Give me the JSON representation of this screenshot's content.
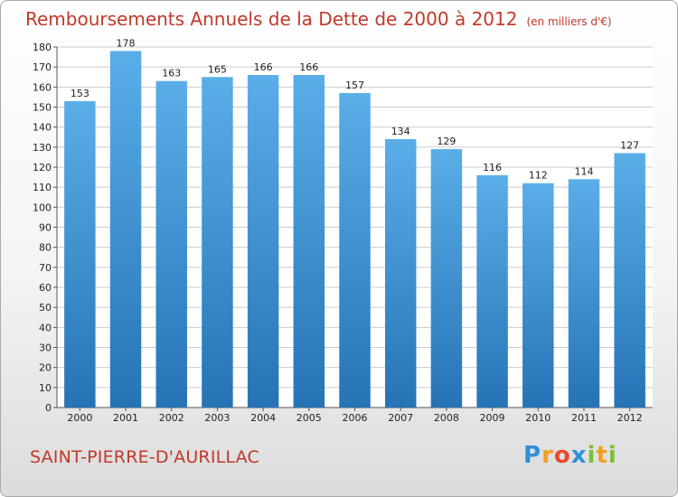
{
  "title": "Remboursements Annuels de la Dette de 2000 à 2012",
  "unit_note": "(en milliers d'€)",
  "commune": "SAINT-PIERRE-D'AURILLAC",
  "logo_text": "Proxiti",
  "colors": {
    "title": "#c0392b",
    "bar_top": "#5aaee8",
    "bar_bottom": "#2673b5",
    "grid": "#cccccc"
  },
  "chart_data": {
    "type": "bar",
    "categories": [
      "2000",
      "2001",
      "2002",
      "2003",
      "2004",
      "2005",
      "2006",
      "2007",
      "2008",
      "2009",
      "2010",
      "2011",
      "2012"
    ],
    "values": [
      153,
      178,
      163,
      165,
      166,
      166,
      157,
      134,
      129,
      116,
      112,
      114,
      127
    ],
    "yticks": [
      0,
      10,
      20,
      30,
      40,
      50,
      60,
      70,
      80,
      90,
      100,
      110,
      120,
      130,
      140,
      150,
      160,
      170,
      180
    ],
    "ylim": [
      0,
      180
    ],
    "grid": true,
    "legend": "none"
  }
}
